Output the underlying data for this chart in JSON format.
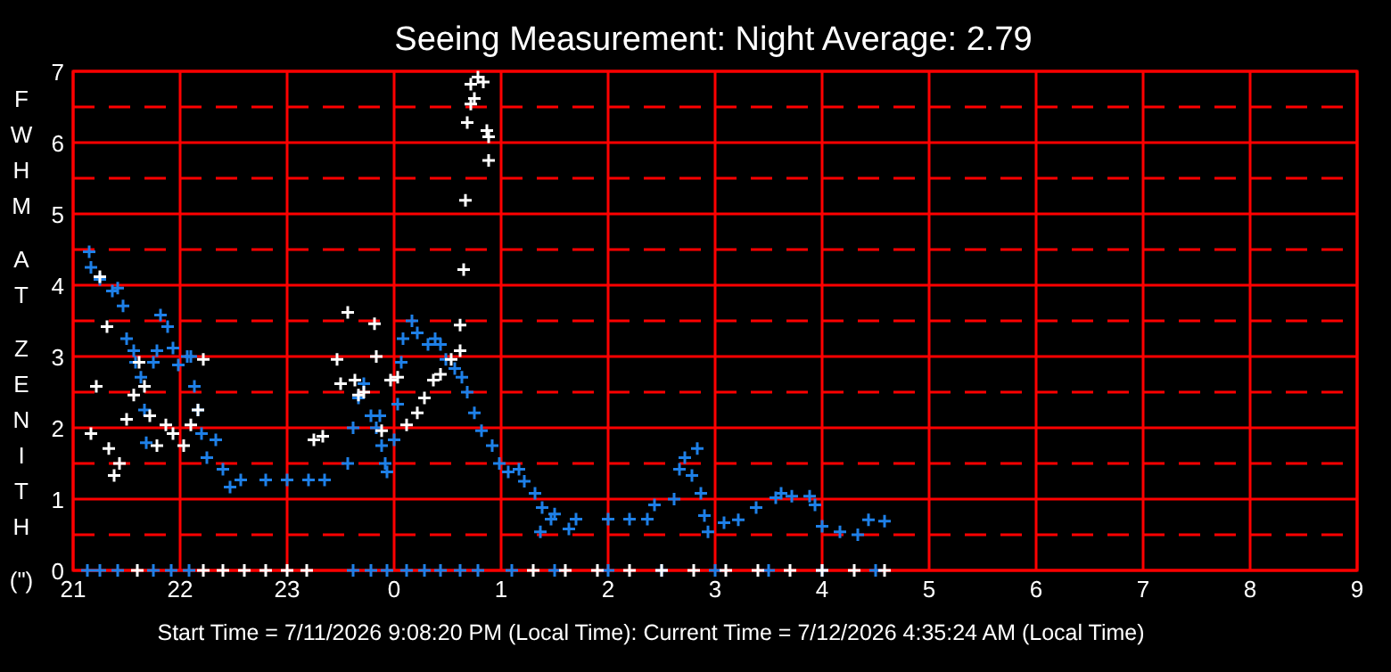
{
  "chart_data": {
    "type": "scatter",
    "title": "Seeing Measurement: Night Average: 2.79",
    "ylabel": "FWHM AT ZENITH (\")",
    "annotations": [
      "Start Time = 7/11/2026 9:08:20 PM (Local Time): Current Time = 7/12/2026 4:35:24 AM (Local Time)"
    ],
    "xlim": [
      "2026-07-11T21:00",
      "2026-07-12T09:00"
    ],
    "xticks": [
      {
        "value": "2026-07-11T21:00",
        "label": "21"
      },
      {
        "value": "2026-07-11T22:00",
        "label": "22"
      },
      {
        "value": "2026-07-11T23:00",
        "label": "23"
      },
      {
        "value": "2026-07-12T00:00",
        "label": "0"
      },
      {
        "value": "2026-07-12T01:00",
        "label": "1"
      },
      {
        "value": "2026-07-12T02:00",
        "label": "2"
      },
      {
        "value": "2026-07-12T03:00",
        "label": "3"
      },
      {
        "value": "2026-07-12T04:00",
        "label": "4"
      },
      {
        "value": "2026-07-12T05:00",
        "label": "5"
      },
      {
        "value": "2026-07-12T06:00",
        "label": "6"
      },
      {
        "value": "2026-07-12T07:00",
        "label": "7"
      },
      {
        "value": "2026-07-12T08:00",
        "label": "8"
      },
      {
        "value": "2026-07-12T09:00",
        "label": "9"
      }
    ],
    "ylim": [
      0,
      7
    ],
    "yticks": [
      0,
      1,
      2,
      3,
      4,
      5,
      6,
      7
    ],
    "grid": true,
    "marker": "cross",
    "ref_lines": [
      {
        "axis": "y",
        "value": 0.5,
        "color": "#ff0000",
        "line_style": "dashed"
      },
      {
        "axis": "y",
        "value": 1.5,
        "color": "#ff0000",
        "line_style": "dashed"
      },
      {
        "axis": "y",
        "value": 2.5,
        "color": "#ff0000",
        "line_style": "dashed"
      },
      {
        "axis": "y",
        "value": 3.5,
        "color": "#ff0000",
        "line_style": "dashed"
      },
      {
        "axis": "y",
        "value": 4.5,
        "color": "#ff0000",
        "line_style": "dashed"
      },
      {
        "axis": "y",
        "value": 5.5,
        "color": "#ff0000",
        "line_style": "dashed"
      },
      {
        "axis": "y",
        "value": 6.5,
        "color": "#ff0000",
        "line_style": "dashed"
      }
    ],
    "series": [
      {
        "color": "#1e80e8",
        "x": [
          "2026-07-11T21:09",
          "2026-07-11T21:10",
          "2026-07-11T21:15",
          "2026-07-11T21:22",
          "2026-07-11T21:25",
          "2026-07-11T21:28",
          "2026-07-11T21:30",
          "2026-07-11T21:34",
          "2026-07-11T21:35",
          "2026-07-11T21:38",
          "2026-07-11T21:40",
          "2026-07-11T21:41",
          "2026-07-11T21:45",
          "2026-07-11T21:47",
          "2026-07-11T21:49",
          "2026-07-11T21:53",
          "2026-07-11T21:56",
          "2026-07-11T21:59",
          "2026-07-11T22:04",
          "2026-07-11T22:06",
          "2026-07-11T22:08",
          "2026-07-11T22:10",
          "2026-07-11T22:12",
          "2026-07-11T22:15",
          "2026-07-11T22:20",
          "2026-07-11T22:24",
          "2026-07-11T22:28",
          "2026-07-11T22:34",
          "2026-07-11T22:48",
          "2026-07-11T23:00",
          "2026-07-11T23:12",
          "2026-07-11T23:21",
          "2026-07-11T23:34",
          "2026-07-11T23:37",
          "2026-07-11T23:40",
          "2026-07-11T23:43",
          "2026-07-11T23:47",
          "2026-07-11T23:50",
          "2026-07-11T23:52",
          "2026-07-11T23:53",
          "2026-07-11T23:55",
          "2026-07-11T23:56",
          "2026-07-12T00:00",
          "2026-07-12T00:02",
          "2026-07-12T00:04",
          "2026-07-12T00:05",
          "2026-07-12T00:10",
          "2026-07-12T00:13",
          "2026-07-12T00:19",
          "2026-07-12T00:23",
          "2026-07-12T00:26",
          "2026-07-12T00:29",
          "2026-07-12T00:34",
          "2026-07-12T00:38",
          "2026-07-12T00:41",
          "2026-07-12T00:45",
          "2026-07-12T00:49",
          "2026-07-12T00:55",
          "2026-07-12T00:59",
          "2026-07-12T01:04",
          "2026-07-12T01:10",
          "2026-07-12T01:13",
          "2026-07-12T01:19",
          "2026-07-12T01:23",
          "2026-07-12T01:30",
          "2026-07-12T01:38",
          "2026-07-12T01:22",
          "2026-07-12T01:28",
          "2026-07-12T01:42",
          "2026-07-12T02:00",
          "2026-07-12T02:12",
          "2026-07-12T02:22",
          "2026-07-12T02:26",
          "2026-07-12T02:37",
          "2026-07-12T02:40",
          "2026-07-12T02:43",
          "2026-07-12T02:50",
          "2026-07-12T02:47",
          "2026-07-12T02:52",
          "2026-07-12T02:54",
          "2026-07-12T02:56",
          "2026-07-12T03:05",
          "2026-07-12T03:13",
          "2026-07-12T03:23",
          "2026-07-12T03:34",
          "2026-07-12T03:37",
          "2026-07-12T03:43",
          "2026-07-12T03:53",
          "2026-07-12T03:56",
          "2026-07-12T04:00",
          "2026-07-12T04:10",
          "2026-07-12T04:20",
          "2026-07-12T04:26",
          "2026-07-12T04:35",
          "2026-07-11T21:08",
          "2026-07-11T21:15",
          "2026-07-11T21:25",
          "2026-07-11T21:45",
          "2026-07-11T21:55",
          "2026-07-11T22:05",
          "2026-07-11T23:37",
          "2026-07-11T23:47",
          "2026-07-11T23:56",
          "2026-07-12T00:07",
          "2026-07-12T00:17",
          "2026-07-12T00:26",
          "2026-07-12T00:37",
          "2026-07-12T00:47",
          "2026-07-12T01:06",
          "2026-07-12T01:30",
          "2026-07-12T02:00",
          "2026-07-12T02:30",
          "2026-07-12T03:00",
          "2026-07-12T03:30",
          "2026-07-12T04:00",
          "2026-07-12T04:30"
        ],
        "values": [
          4.47,
          4.25,
          4.08,
          3.92,
          3.96,
          3.71,
          3.25,
          3.08,
          2.92,
          2.71,
          2.25,
          1.79,
          2.92,
          3.08,
          3.58,
          3.42,
          3.12,
          2.88,
          3.0,
          3.0,
          2.58,
          2.25,
          1.92,
          1.58,
          1.83,
          1.42,
          1.17,
          1.27,
          1.27,
          1.27,
          1.27,
          1.27,
          1.5,
          2.0,
          2.42,
          2.62,
          2.17,
          2.0,
          2.17,
          1.75,
          1.5,
          1.38,
          1.83,
          2.33,
          2.92,
          3.25,
          3.5,
          3.33,
          3.17,
          3.25,
          3.17,
          2.96,
          2.83,
          2.71,
          2.5,
          2.21,
          1.96,
          1.75,
          1.5,
          1.38,
          1.42,
          1.25,
          1.08,
          0.88,
          0.79,
          0.58,
          0.54,
          0.72,
          0.72,
          0.72,
          0.72,
          0.72,
          0.92,
          1.0,
          1.42,
          1.58,
          1.71,
          1.33,
          1.08,
          0.77,
          0.54,
          0.67,
          0.71,
          0.88,
          1.02,
          1.08,
          1.04,
          1.04,
          0.92,
          0.62,
          0.54,
          0.5,
          0.71,
          0.69,
          0,
          0,
          0,
          0,
          0,
          0,
          0,
          0,
          0,
          0,
          0,
          0,
          0,
          0,
          0,
          0,
          0,
          0,
          0,
          0,
          0,
          0
        ]
      },
      {
        "color": "#ffffff",
        "x": [
          "2026-07-11T21:10",
          "2026-07-11T21:13",
          "2026-07-11T21:19",
          "2026-07-11T21:15",
          "2026-07-11T21:20",
          "2026-07-11T21:23",
          "2026-07-11T21:26",
          "2026-07-11T21:30",
          "2026-07-11T21:34",
          "2026-07-11T21:37",
          "2026-07-11T21:40",
          "2026-07-11T21:43",
          "2026-07-11T21:47",
          "2026-07-11T21:52",
          "2026-07-11T21:56",
          "2026-07-11T22:02",
          "2026-07-11T22:06",
          "2026-07-11T22:10",
          "2026-07-11T22:13",
          "2026-07-11T23:15",
          "2026-07-11T23:20",
          "2026-07-11T23:28",
          "2026-07-11T23:30",
          "2026-07-11T23:34",
          "2026-07-11T23:38",
          "2026-07-11T23:40",
          "2026-07-11T23:43",
          "2026-07-11T23:49",
          "2026-07-11T23:50",
          "2026-07-11T23:53",
          "2026-07-11T23:58",
          "2026-07-12T00:02",
          "2026-07-12T00:07",
          "2026-07-12T00:13",
          "2026-07-12T00:17",
          "2026-07-12T00:22",
          "2026-07-12T00:26",
          "2026-07-12T00:32",
          "2026-07-12T00:37",
          "2026-07-12T00:37",
          "2026-07-12T00:39",
          "2026-07-12T00:40",
          "2026-07-12T00:41",
          "2026-07-12T00:43",
          "2026-07-12T00:45",
          "2026-07-12T00:43",
          "2026-07-12T00:47",
          "2026-07-12T00:50",
          "2026-07-12T00:52",
          "2026-07-12T00:53",
          "2026-07-12T00:53",
          "2026-07-11T21:36",
          "2026-07-11T22:13",
          "2026-07-11T22:24",
          "2026-07-11T22:36",
          "2026-07-11T22:48",
          "2026-07-11T23:00",
          "2026-07-11T23:11",
          "2026-07-12T01:18",
          "2026-07-12T01:36",
          "2026-07-12T01:54",
          "2026-07-12T02:12",
          "2026-07-12T02:30",
          "2026-07-12T02:48",
          "2026-07-12T03:06",
          "2026-07-12T03:24",
          "2026-07-12T03:42",
          "2026-07-12T04:00",
          "2026-07-12T04:18",
          "2026-07-12T04:35"
        ],
        "values": [
          1.92,
          2.58,
          3.42,
          4.12,
          1.71,
          1.33,
          1.5,
          2.12,
          2.46,
          2.92,
          2.58,
          2.17,
          1.75,
          2.04,
          1.92,
          1.75,
          2.04,
          2.25,
          2.96,
          1.83,
          1.88,
          2.96,
          2.62,
          3.62,
          2.67,
          2.46,
          2.5,
          3.46,
          3.0,
          1.96,
          2.67,
          2.71,
          2.04,
          2.21,
          2.42,
          2.67,
          2.75,
          2.96,
          3.08,
          3.44,
          4.22,
          5.19,
          6.28,
          6.54,
          6.62,
          6.82,
          6.92,
          6.85,
          6.17,
          6.08,
          5.75,
          0,
          0,
          0,
          0,
          0,
          0,
          0,
          0,
          0,
          0,
          0,
          0,
          0,
          0,
          0,
          0,
          0,
          0,
          0
        ]
      }
    ]
  }
}
